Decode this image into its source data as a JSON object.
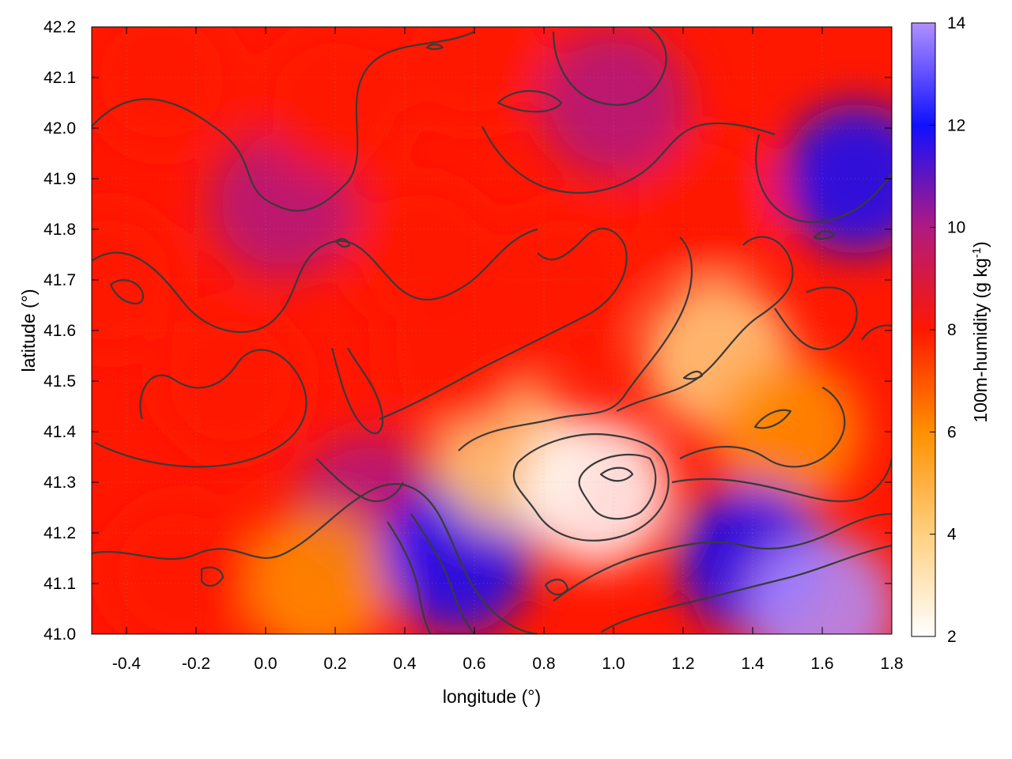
{
  "chart_data": {
    "type": "heatmap",
    "title": "",
    "xlabel": "longitude (°)",
    "ylabel": "latitude (°)",
    "colorbar_label_main": "100m-humidity (g kg",
    "colorbar_label_sup": "-1",
    "colorbar_label_end": ")",
    "xlim": [
      -0.5,
      1.8
    ],
    "ylim": [
      41.0,
      42.2
    ],
    "x_ticks": [
      "-0.4",
      "-0.2",
      "0.0",
      "0.2",
      "0.4",
      "0.6",
      "0.8",
      "1.0",
      "1.2",
      "1.4",
      "1.6",
      "1.8"
    ],
    "x_tick_values": [
      -0.4,
      -0.2,
      0.0,
      0.2,
      0.4,
      0.6,
      0.8,
      1.0,
      1.2,
      1.4,
      1.6,
      1.8
    ],
    "y_ticks": [
      "41.0",
      "41.1",
      "41.2",
      "41.3",
      "41.4",
      "41.5",
      "41.6",
      "41.7",
      "41.8",
      "41.9",
      "42.0",
      "42.1",
      "42.2"
    ],
    "y_tick_values": [
      41.0,
      41.1,
      41.2,
      41.3,
      41.4,
      41.5,
      41.6,
      41.7,
      41.8,
      41.9,
      42.0,
      42.1,
      42.2
    ],
    "colorbar_range": [
      2,
      14
    ],
    "colorbar_ticks": [
      "2",
      "4",
      "6",
      "8",
      "10",
      "12",
      "14"
    ],
    "colorbar_tick_values": [
      2,
      4,
      6,
      8,
      10,
      12,
      14
    ],
    "colormap": [
      {
        "value": 2,
        "color": "#ffffff"
      },
      {
        "value": 4,
        "color": "#ffd080"
      },
      {
        "value": 6,
        "color": "#ff9000"
      },
      {
        "value": 8,
        "color": "#ff1800"
      },
      {
        "value": 10,
        "color": "#b01a80"
      },
      {
        "value": 12,
        "color": "#1010ff"
      },
      {
        "value": 14,
        "color": "#b090ff"
      }
    ],
    "contour_color": "#3a3a3a",
    "grid": true,
    "legend": "colorbar-right",
    "field_samples": [
      {
        "lon": -0.45,
        "lat": 41.7,
        "value": 7.5
      },
      {
        "lon": -0.3,
        "lat": 42.1,
        "value": 8.2
      },
      {
        "lon": -0.1,
        "lat": 41.5,
        "value": 8.4
      },
      {
        "lon": 0.05,
        "lat": 41.85,
        "value": 9.2
      },
      {
        "lon": 0.2,
        "lat": 42.05,
        "value": 8.3
      },
      {
        "lon": 0.3,
        "lat": 41.25,
        "value": 9.8
      },
      {
        "lon": 0.15,
        "lat": 41.1,
        "value": 6.5
      },
      {
        "lon": -0.25,
        "lat": 41.12,
        "value": 7.6
      },
      {
        "lon": 0.55,
        "lat": 41.15,
        "value": 11.5
      },
      {
        "lon": 0.7,
        "lat": 41.35,
        "value": 5.0
      },
      {
        "lon": 0.95,
        "lat": 41.28,
        "value": 3.0
      },
      {
        "lon": 0.85,
        "lat": 41.7,
        "value": 7.8
      },
      {
        "lon": 1.3,
        "lat": 41.55,
        "value": 4.2
      },
      {
        "lon": 1.5,
        "lat": 41.4,
        "value": 5.6
      },
      {
        "lon": 1.4,
        "lat": 41.15,
        "value": 11.8
      },
      {
        "lon": 1.6,
        "lat": 41.05,
        "value": 13.2
      },
      {
        "lon": 1.7,
        "lat": 41.9,
        "value": 11.5
      },
      {
        "lon": 1.25,
        "lat": 41.85,
        "value": 7.2
      },
      {
        "lon": 1.0,
        "lat": 42.05,
        "value": 9.2
      },
      {
        "lon": 0.6,
        "lat": 42.15,
        "value": 9.0
      },
      {
        "lon": 0.45,
        "lat": 41.75,
        "value": 8.0
      },
      {
        "lon": 0.55,
        "lat": 41.55,
        "value": 8.6
      }
    ]
  }
}
